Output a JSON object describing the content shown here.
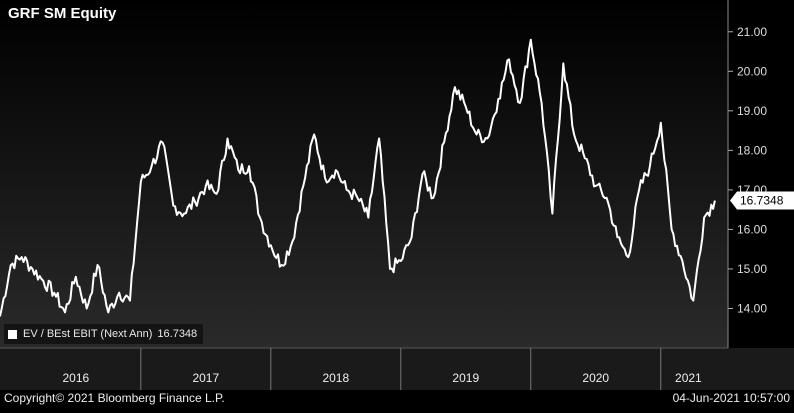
{
  "title": "GRF SM Equity",
  "legend": {
    "label": "EV / BEst EBIT (Next Ann)",
    "value": "16.7348"
  },
  "last_value_tag": "16.7348",
  "footer": {
    "copyright": "Copyright© 2021 Bloomberg Finance L.P.",
    "timestamp": "04-Jun-2021 10:57:00"
  },
  "colors": {
    "background": "#000000",
    "plot_top": "#000000",
    "plot_bottom": "#2a2a2a",
    "line": "#ffffff",
    "axis_band": "#1e1e1e"
  },
  "chart_data": {
    "type": "line",
    "title": "GRF SM Equity",
    "xlabel": "",
    "ylabel": "",
    "x_axis": "time",
    "x_range": [
      "2015-12",
      "2021-06-04"
    ],
    "ylim": [
      13.0,
      21.5
    ],
    "y_ticks": [
      "14.00",
      "15.00",
      "16.00",
      "17.00",
      "18.00",
      "19.00",
      "20.00",
      "21.00"
    ],
    "x_tick_labels": [
      "2016",
      "2017",
      "2018",
      "2019",
      "2020",
      "2021"
    ],
    "grid": false,
    "legend_position": "bottom-left",
    "series": [
      {
        "name": "EV / BEst EBIT (Next Ann)",
        "x": [
          "2015-12",
          "2016-01",
          "2016-02",
          "2016-03",
          "2016-04",
          "2016-05",
          "2016-06",
          "2016-07",
          "2016-08",
          "2016-09",
          "2016-10",
          "2016-11",
          "2016-12",
          "2017-01",
          "2017-02",
          "2017-03",
          "2017-04",
          "2017-05",
          "2017-06",
          "2017-07",
          "2017-08",
          "2017-09",
          "2017-10",
          "2017-11",
          "2017-12",
          "2018-01",
          "2018-02",
          "2018-03",
          "2018-04",
          "2018-05",
          "2018-06",
          "2018-07",
          "2018-08",
          "2018-09",
          "2018-10",
          "2018-11",
          "2018-12",
          "2019-01",
          "2019-02",
          "2019-03",
          "2019-04",
          "2019-05",
          "2019-06",
          "2019-07",
          "2019-08",
          "2019-09",
          "2019-10",
          "2019-11",
          "2019-12",
          "2020-01",
          "2020-02",
          "2020-03",
          "2020-04",
          "2020-05",
          "2020-06",
          "2020-07",
          "2020-08",
          "2020-09",
          "2020-10",
          "2020-11",
          "2020-12",
          "2021-01",
          "2021-02",
          "2021-03",
          "2021-04",
          "2021-05",
          "2021-06"
        ],
        "y": [
          13.8,
          15.1,
          15.3,
          15.0,
          14.7,
          14.4,
          13.9,
          14.8,
          14.0,
          15.1,
          13.9,
          14.4,
          14.2,
          17.2,
          17.6,
          18.2,
          16.6,
          16.4,
          16.7,
          17.1,
          16.9,
          18.3,
          17.5,
          17.6,
          16.3,
          15.6,
          15.1,
          15.7,
          17.1,
          18.4,
          17.3,
          17.5,
          17.0,
          16.8,
          16.3,
          18.3,
          15.0,
          15.2,
          15.8,
          17.4,
          16.8,
          18.2,
          19.6,
          19.1,
          18.4,
          18.3,
          19.3,
          20.3,
          19.2,
          20.8,
          19.2,
          16.4,
          20.2,
          18.4,
          17.8,
          17.1,
          16.8,
          15.8,
          15.3,
          17.0,
          17.6,
          18.7,
          16.0,
          15.2,
          14.2,
          16.3,
          16.73
        ]
      }
    ]
  }
}
